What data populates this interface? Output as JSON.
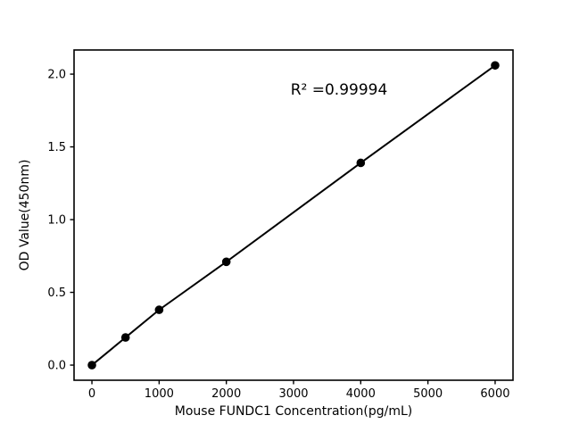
{
  "figure": {
    "background": "#ffffff",
    "foreground": "#000000"
  },
  "chart_data": {
    "type": "line",
    "title": "",
    "x": [
      0,
      500,
      1000,
      2000,
      4000,
      6000
    ],
    "y": [
      0.0,
      0.19,
      0.38,
      0.71,
      1.39,
      2.06
    ],
    "xlabel": "Mouse FUNDC1 Concentration(pg/mL)",
    "ylabel": "OD Value(450nm)",
    "x_tick_labels": [
      "0",
      "1000",
      "2000",
      "3000",
      "4000",
      "5000",
      "6000"
    ],
    "y_tick_labels": [
      "0.0",
      "0.5",
      "1.0",
      "1.5",
      "2.0"
    ],
    "xlim": [
      -266,
      6266
    ],
    "ylim": [
      -0.104,
      2.166
    ],
    "grid": false,
    "legend": null,
    "line_color": "#000000",
    "marker_color": "#000000",
    "marker": "circle",
    "annotation": {
      "text": "R² =0.99994",
      "x": 3677,
      "y": 1.896
    }
  }
}
